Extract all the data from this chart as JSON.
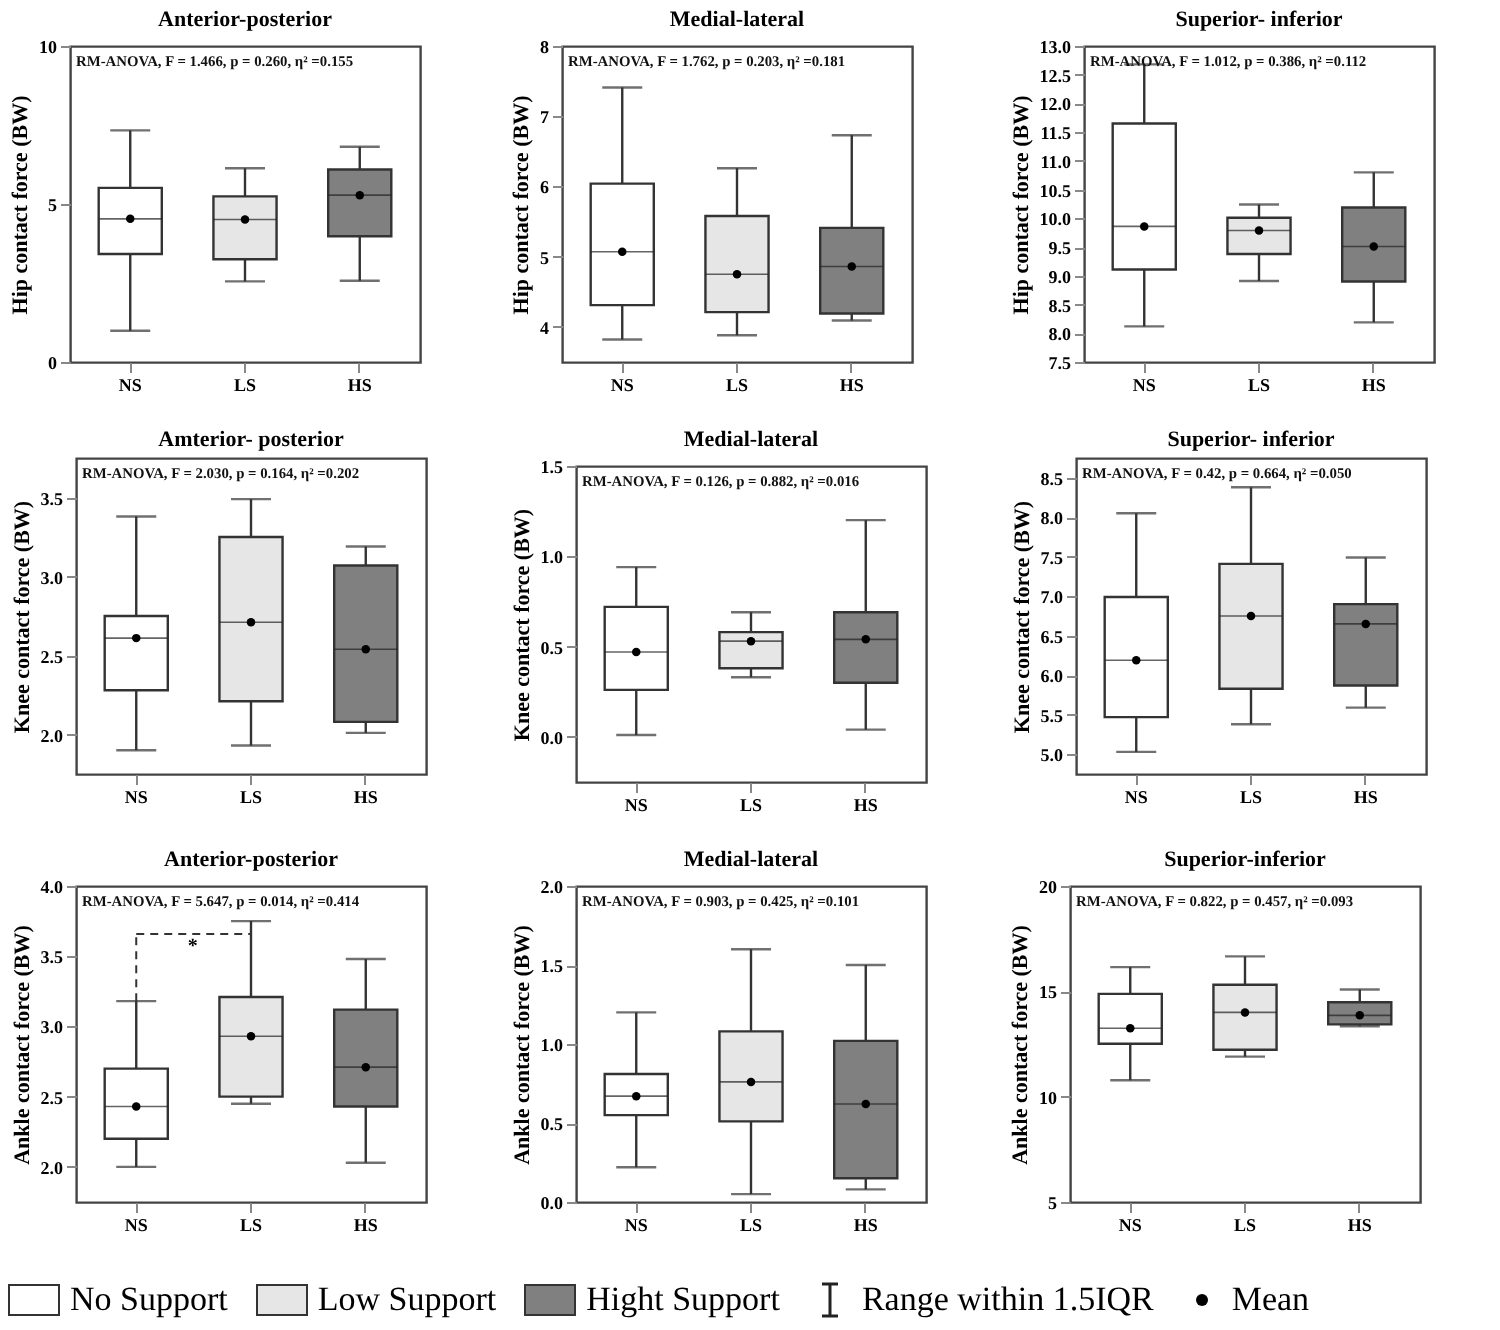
{
  "chart_data": [
    {
      "type": "box",
      "title": "Anterior-posterior",
      "ylabel": "Hip contact force (BW)",
      "categories": [
        "NS",
        "LS",
        "HS"
      ],
      "colors": [
        "#ffffff",
        "#e6e6e6",
        "#808080"
      ],
      "ylim": [
        0,
        10
      ],
      "yticks": [
        0,
        5,
        10
      ],
      "annotations": [
        "RM-ANOVA, F = 1.466, p = 0.260, η² =0.155"
      ],
      "boxes": [
        {
          "low": 0.99,
          "q1": 3.42,
          "median": 4.53,
          "q3": 5.51,
          "high": 7.33,
          "mean": 4.53
        },
        {
          "low": 2.55,
          "q1": 3.25,
          "median": 4.51,
          "q3": 5.24,
          "high": 6.13,
          "mean": 4.51
        },
        {
          "low": 2.57,
          "q1": 3.98,
          "median": 5.28,
          "q3": 6.09,
          "high": 6.81,
          "mean": 5.28
        }
      ]
    },
    {
      "type": "box",
      "title": "Medial-lateral",
      "ylabel": "Hip contact force (BW)",
      "categories": [
        "NS",
        "LS",
        "HS"
      ],
      "colors": [
        "#ffffff",
        "#e6e6e6",
        "#808080"
      ],
      "ylim": [
        3.5,
        8
      ],
      "yticks": [
        4,
        5,
        6,
        7,
        8
      ],
      "annotations": [
        "RM-ANOVA, F = 1.762, p = 0.203, η² =0.181"
      ],
      "boxes": [
        {
          "low": 3.82,
          "q1": 4.31,
          "median": 5.07,
          "q3": 6.04,
          "high": 7.41,
          "mean": 5.07
        },
        {
          "low": 3.88,
          "q1": 4.21,
          "median": 4.75,
          "q3": 5.58,
          "high": 6.26,
          "mean": 4.75
        },
        {
          "low": 4.09,
          "q1": 4.19,
          "median": 4.86,
          "q3": 5.41,
          "high": 6.73,
          "mean": 4.86
        }
      ]
    },
    {
      "type": "box",
      "title": "Superior- inferior",
      "ylabel": "Hip contact force (BW)",
      "categories": [
        "NS",
        "LS",
        "HS"
      ],
      "colors": [
        "#ffffff",
        "#e6e6e6",
        "#808080"
      ],
      "ylim": [
        7.5,
        13
      ],
      "yticks": [
        {
          "value": 7.5,
          "label": "7.5"
        },
        {
          "value": 8,
          "label": "8.0"
        },
        {
          "value": 8.5,
          "label": "8.5"
        },
        {
          "value": 9,
          "label": "9.0"
        },
        {
          "value": 9.5,
          "label": "9.5"
        },
        {
          "value": 10,
          "label": "10.0"
        },
        {
          "value": 10.5,
          "label": "10.5"
        },
        {
          "value": 11,
          "label": "11.0"
        },
        {
          "value": 11.5,
          "label": "11.5"
        },
        {
          "value": 12,
          "label": "12.0"
        },
        {
          "value": 12.5,
          "label": "12.5"
        },
        {
          "value": 13,
          "label": "13.0"
        }
      ],
      "annotations": [
        "RM-ANOVA, F = 1.012, p = 0.386, η² =0.112"
      ],
      "boxes": [
        {
          "low": 8.12,
          "q1": 9.11,
          "median": 9.86,
          "q3": 11.65,
          "high": 12.68,
          "mean": 9.86
        },
        {
          "low": 8.91,
          "q1": 9.38,
          "median": 9.79,
          "q3": 10.01,
          "high": 10.24,
          "mean": 9.79
        },
        {
          "low": 8.19,
          "q1": 8.9,
          "median": 9.51,
          "q3": 10.19,
          "high": 10.8,
          "mean": 9.51
        }
      ]
    },
    {
      "type": "box",
      "title": "Amterior- posterior",
      "ylabel": "Knee contact force (BW)",
      "categories": [
        "NS",
        "LS",
        "HS"
      ],
      "colors": [
        "#ffffff",
        "#e6e6e6",
        "#808080"
      ],
      "ylim": [
        1.75,
        3.75
      ],
      "yticks": [
        {
          "value": 2,
          "label": "2.0"
        },
        {
          "value": 2.5,
          "label": "2.5"
        },
        {
          "value": 3,
          "label": "3.0"
        },
        {
          "value": 3.5,
          "label": "3.5"
        }
      ],
      "annotations": [
        "RM-ANOVA, F = 2.030, p = 0.164, η² =0.202"
      ],
      "boxes": [
        {
          "low": 1.9,
          "q1": 2.28,
          "median": 2.61,
          "q3": 2.75,
          "high": 3.38,
          "mean": 2.61
        },
        {
          "low": 1.93,
          "q1": 2.21,
          "median": 2.71,
          "q3": 3.25,
          "high": 3.49,
          "mean": 2.71
        },
        {
          "low": 2.01,
          "q1": 2.08,
          "median": 2.54,
          "q3": 3.07,
          "high": 3.19,
          "mean": 2.54
        }
      ]
    },
    {
      "type": "box",
      "title": "Medial-lateral",
      "ylabel": "Knee contact force (BW)",
      "categories": [
        "NS",
        "LS",
        "HS"
      ],
      "colors": [
        "#ffffff",
        "#e6e6e6",
        "#808080"
      ],
      "ylim": [
        -0.25,
        1.5
      ],
      "yticks": [
        {
          "value": 0,
          "label": "0.0"
        },
        {
          "value": 0.5,
          "label": "0.5"
        },
        {
          "value": 1,
          "label": "1.0"
        },
        {
          "value": 1.5,
          "label": "1.5"
        }
      ],
      "annotations": [
        "RM-ANOVA, F = 0.126, p = 0.882, η² =0.016"
      ],
      "boxes": [
        {
          "low": 0.01,
          "q1": 0.26,
          "median": 0.47,
          "q3": 0.72,
          "high": 0.94,
          "mean": 0.47
        },
        {
          "low": 0.33,
          "q1": 0.38,
          "median": 0.53,
          "q3": 0.58,
          "high": 0.69,
          "mean": 0.53
        },
        {
          "low": 0.04,
          "q1": 0.3,
          "median": 0.54,
          "q3": 0.69,
          "high": 1.2,
          "mean": 0.54
        }
      ]
    },
    {
      "type": "box",
      "title": "Superior- inferior",
      "ylabel": "Knee contact force (BW)",
      "categories": [
        "NS",
        "LS",
        "HS"
      ],
      "colors": [
        "#ffffff",
        "#e6e6e6",
        "#808080"
      ],
      "ylim": [
        4.75,
        8.75
      ],
      "yticks": [
        {
          "value": 5,
          "label": "5.0"
        },
        {
          "value": 5.5,
          "label": "5.5"
        },
        {
          "value": 6,
          "label": "6.0"
        },
        {
          "value": 6.5,
          "label": "6.5"
        },
        {
          "value": 7,
          "label": "7.0"
        },
        {
          "value": 7.5,
          "label": "7.5"
        },
        {
          "value": 8,
          "label": "8.0"
        },
        {
          "value": 8.5,
          "label": "8.5"
        }
      ],
      "annotations": [
        "RM-ANOVA, F = 0.42, p = 0.664, η² =0.050"
      ],
      "boxes": [
        {
          "low": 5.03,
          "q1": 5.47,
          "median": 6.19,
          "q3": 6.99,
          "high": 8.05,
          "mean": 6.19
        },
        {
          "low": 5.38,
          "q1": 5.83,
          "median": 6.75,
          "q3": 7.41,
          "high": 8.38,
          "mean": 6.75
        },
        {
          "low": 5.59,
          "q1": 5.87,
          "median": 6.65,
          "q3": 6.9,
          "high": 7.49,
          "mean": 6.65
        }
      ]
    },
    {
      "type": "box",
      "title": "Anterior-posterior",
      "ylabel": "Ankle contact force (BW)",
      "categories": [
        "NS",
        "LS",
        "HS"
      ],
      "colors": [
        "#ffffff",
        "#e6e6e6",
        "#808080"
      ],
      "ylim": [
        1.75,
        4
      ],
      "yticks": [
        {
          "value": 2,
          "label": "2.0"
        },
        {
          "value": 2.5,
          "label": "2.5"
        },
        {
          "value": 3,
          "label": "3.0"
        },
        {
          "value": 3.5,
          "label": "3.5"
        },
        {
          "value": 4,
          "label": "4.0"
        }
      ],
      "annotations": [
        "RM-ANOVA, F = 5.647, p = 0.014, η² =0.414",
        "*"
      ],
      "boxes": [
        {
          "low": 2.0,
          "q1": 2.2,
          "median": 2.43,
          "q3": 2.7,
          "high": 3.18,
          "mean": 2.43
        },
        {
          "low": 2.45,
          "q1": 2.5,
          "median": 2.93,
          "q3": 3.21,
          "high": 3.75,
          "mean": 2.93
        },
        {
          "low": 2.03,
          "q1": 2.43,
          "median": 2.71,
          "q3": 3.12,
          "high": 3.48,
          "mean": 2.71
        }
      ]
    },
    {
      "type": "box",
      "title": "Medial-lateral",
      "ylabel": "Ankle contact force (BW)",
      "categories": [
        "NS",
        "LS",
        "HS"
      ],
      "colors": [
        "#ffffff",
        "#e6e6e6",
        "#808080"
      ],
      "ylim": [
        0,
        2
      ],
      "yticks": [
        {
          "value": 0,
          "label": "0.0"
        },
        {
          "value": 0.5,
          "label": "0.5"
        },
        {
          "value": 1,
          "label": "1.0"
        },
        {
          "value": 1.5,
          "label": "1.5"
        },
        {
          "value": 2,
          "label": "2.0"
        }
      ],
      "annotations": [
        "RM-ANOVA, F = 0.903, p = 0.425, η² =0.101"
      ],
      "boxes": [
        {
          "low": 0.22,
          "q1": 0.55,
          "median": 0.67,
          "q3": 0.81,
          "high": 1.2,
          "mean": 0.67
        },
        {
          "low": 0.05,
          "q1": 0.51,
          "median": 0.76,
          "q3": 1.08,
          "high": 1.6,
          "mean": 0.76
        },
        {
          "low": 0.08,
          "q1": 0.15,
          "median": 0.62,
          "q3": 1.02,
          "high": 1.5,
          "mean": 0.62
        }
      ]
    },
    {
      "type": "box",
      "title": "Superior-inferior",
      "ylabel": "Ankle contact force (BW)",
      "categories": [
        "NS",
        "LS",
        "HS"
      ],
      "colors": [
        "#ffffff",
        "#e6e6e6",
        "#808080"
      ],
      "ylim": [
        5,
        20
      ],
      "yticks": [
        5,
        10,
        15,
        20
      ],
      "annotations": [
        "RM-ANOVA, F = 0.822, p = 0.457, η² =0.093"
      ],
      "boxes": [
        {
          "low": 10.78,
          "q1": 12.51,
          "median": 13.25,
          "q3": 14.88,
          "high": 16.15,
          "mean": 13.25
        },
        {
          "low": 11.9,
          "q1": 12.23,
          "median": 14.0,
          "q3": 15.31,
          "high": 16.66,
          "mean": 14.0
        },
        {
          "low": 13.34,
          "q1": 13.43,
          "median": 13.86,
          "q3": 14.48,
          "high": 15.09,
          "mean": 13.86
        }
      ]
    },
    {
      "type": "other",
      "categories": [
        "No Support",
        "Low Support",
        "Hight Support"
      ],
      "colors": [
        "#ffffff",
        "#e6e6e6",
        "#808080"
      ],
      "annotations": [
        "Range within 1.5IQR",
        "Mean"
      ]
    }
  ]
}
